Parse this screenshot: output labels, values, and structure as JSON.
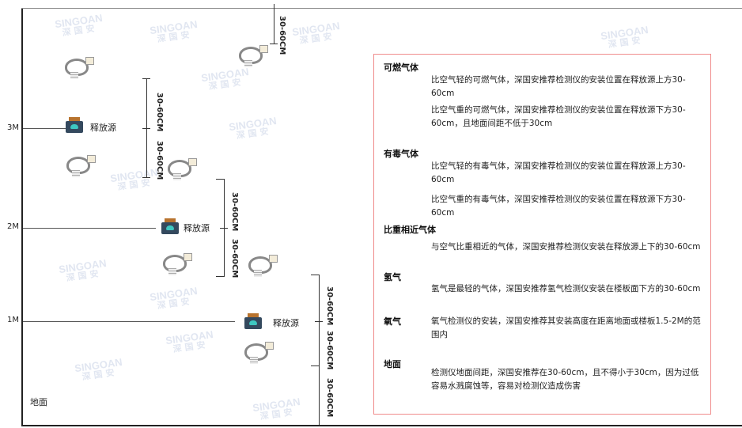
{
  "watermark": {
    "brand": "SINGOAN",
    "cn": "深国安"
  },
  "floors": [
    {
      "label": "3M"
    },
    {
      "label": "2M"
    },
    {
      "label": "1M"
    },
    {
      "label": "地面"
    }
  ],
  "source_label": "释放源",
  "dimension_label": "30-60CM",
  "colors": {
    "panel_border": "#f08c8c",
    "source_body": "#34495e",
    "source_face": "#3ec7c1"
  },
  "panel": {
    "sections": [
      {
        "title": "可燃气体",
        "paras": [
          "比空气轻的可燃气体，深国安推荐检测仪的安装位置在释放源上方30-60cm",
          "比空气重的可燃气体，深国安推荐检测仪的安装位置在释放源下方30-60cm，且地面间距不低于30cm"
        ]
      },
      {
        "title": "有毒气体",
        "paras": [
          "比空气轻的有毒气体，深国安推荐检测仪的安装位置在释放源上方30-60cm",
          "比空气重的有毒气体，深国安推荐检测仪的安装位置在释放源下方30-60cm"
        ]
      },
      {
        "title": "比重相近气体",
        "paras": [
          "与空气比重相近的气体，深国安推荐检测仪安装在释放源上下的30-60cm"
        ]
      },
      {
        "title": "氢气",
        "paras": [
          "氢气是最轻的气体，深国安推荐氢气检测仪安装在楼板面下方的30-60cm"
        ]
      },
      {
        "title": "氧气",
        "paras": [
          "氧气检测仪的安装，深国安推荐其安装高度在距离地面或楼板1.5-2M的范围内"
        ]
      },
      {
        "title": "地面",
        "paras": [
          "检测仪地面间距，深国安推荐在30-60cm，且不得小于30cm，因为过低容易水溅腐蚀等，容易对检测仪造成伤害"
        ]
      }
    ]
  }
}
